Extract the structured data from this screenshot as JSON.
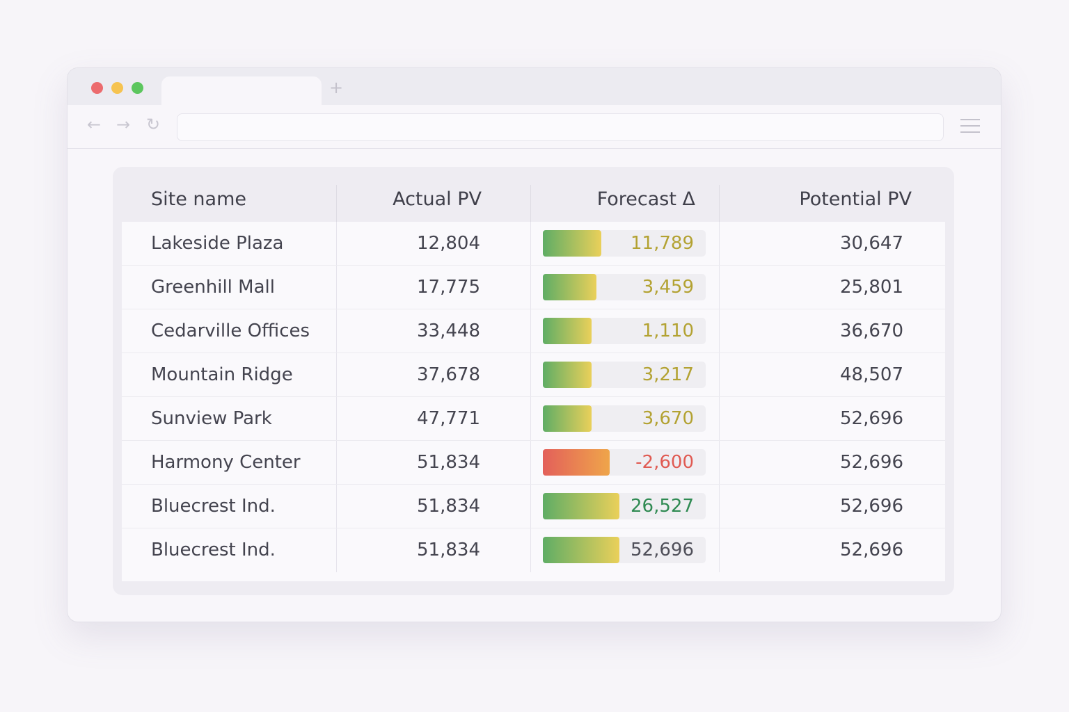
{
  "browser": {
    "new_tab": "+",
    "url": ""
  },
  "table": {
    "headers": [
      "Site name",
      "Actual PV",
      "Forecast Δ",
      "Potential PV"
    ],
    "rows": [
      {
        "site": "Lakeside Plaza",
        "actual": "12,804",
        "forecast": "11,789",
        "fill": 0.36,
        "tone": "positive",
        "potential": "30,647"
      },
      {
        "site": "Greenhill Mall",
        "actual": "17,775",
        "forecast": "3,459",
        "fill": 0.33,
        "tone": "positive",
        "potential": "25,801"
      },
      {
        "site": "Cedarville Offices",
        "actual": "33,448",
        "forecast": "1,110",
        "fill": 0.3,
        "tone": "positive",
        "potential": "36,670"
      },
      {
        "site": "Mountain Ridge",
        "actual": "37,678",
        "forecast": "3,217",
        "fill": 0.3,
        "tone": "positive",
        "potential": "48,507"
      },
      {
        "site": "Sunview Park",
        "actual": "47,771",
        "forecast": "3,670",
        "fill": 0.3,
        "tone": "positive",
        "potential": "52,696"
      },
      {
        "site": "Harmony Center",
        "actual": "51,834",
        "forecast": "-2,600",
        "fill": 0.41,
        "tone": "negative",
        "potential": "52,696"
      },
      {
        "site": "Bluecrest Ind.",
        "actual": "51,834",
        "forecast": "26,527",
        "fill": 0.47,
        "tone": "strong",
        "potential": "52,696"
      },
      {
        "site": "Bluecrest Ind.",
        "actual": "51,834",
        "forecast": "52,696",
        "fill": 0.47,
        "tone": "neutral",
        "potential": "52,696"
      }
    ]
  },
  "colors": {
    "positive": "#b3a232",
    "negative": "#e05a52",
    "strong": "#2f8a52",
    "neutral": "#50505a",
    "green_grad": "linear-gradient(90deg,#5fad65,#ead05a)",
    "red_grad": "linear-gradient(90deg,#e3605a,#efa54a)"
  }
}
